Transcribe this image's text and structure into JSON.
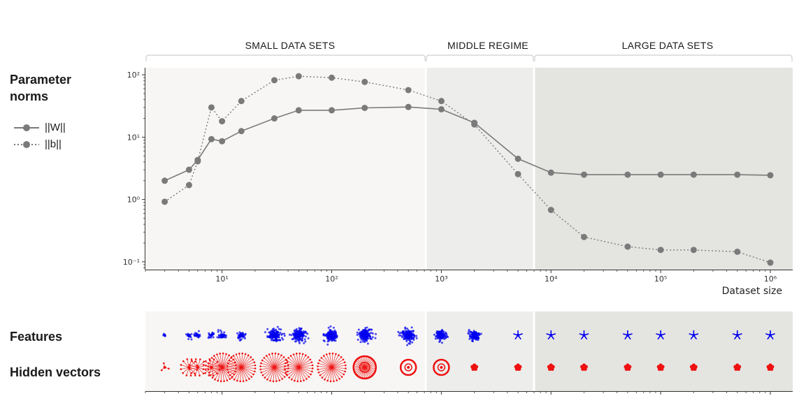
{
  "left_panel": {
    "title": "Parameter norms",
    "legend": [
      {
        "label": "||W||",
        "style": "solid"
      },
      {
        "label": "||b||",
        "style": "dotted"
      }
    ],
    "features_label": "Features",
    "hidden_label": "Hidden vectors"
  },
  "regions": [
    {
      "label": "SMALL DATA SETS",
      "x_from": 2,
      "x_to": 720,
      "color": "#f7f6f4"
    },
    {
      "label": "MIDDLE REGIME",
      "x_from": 720,
      "x_to": 7000,
      "color": "#ededeb"
    },
    {
      "label": "LARGE DATA SETS",
      "x_from": 7000,
      "x_to": 1600000,
      "color": "#e4e4e1"
    }
  ],
  "chart_data": {
    "type": "line",
    "title": "",
    "xlabel": "Dataset size",
    "ylabel": "",
    "xscale": "log",
    "yscale": "log",
    "xlim": [
      2,
      1600000
    ],
    "ylim": [
      0.075,
      130
    ],
    "x_tick_labels": [
      "10^1",
      "10^2",
      "10^3",
      "10^4",
      "10^5",
      "10^6"
    ],
    "y_tick_labels": [
      "10^-1",
      "10^0",
      "10^1",
      "10^2"
    ],
    "x": [
      3,
      5,
      6,
      8,
      10,
      15,
      30,
      50,
      100,
      200,
      500,
      1000,
      2000,
      5000,
      10000,
      20000,
      50000,
      100000,
      200000,
      500000,
      1000000
    ],
    "series": [
      {
        "name": "||W||",
        "style": "solid",
        "color": "#7a7a7a",
        "values": [
          2.0,
          3.0,
          4.3,
          9.3,
          8.6,
          12.5,
          20,
          27,
          27,
          29.5,
          30.5,
          28,
          17,
          4.5,
          2.7,
          2.5,
          2.5,
          2.5,
          2.5,
          2.5,
          2.45
        ]
      },
      {
        "name": "||b||",
        "style": "dotted",
        "color": "#7a7a7a",
        "values": [
          0.92,
          1.7,
          4.1,
          30,
          18,
          38,
          82,
          95,
          90,
          77,
          57,
          38,
          16,
          2.55,
          0.68,
          0.25,
          0.175,
          0.155,
          0.155,
          0.145,
          0.097
        ]
      }
    ]
  },
  "feature_glyphs": {
    "feature_color": "#0000ee",
    "hidden_color": "#ee1111"
  }
}
